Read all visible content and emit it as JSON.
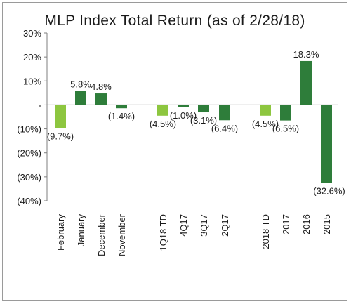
{
  "chart_data": {
    "type": "bar",
    "title": "MLP Index Total Return (as of 2/28/18)",
    "ylim": [
      -40,
      30
    ],
    "yticks": [
      {
        "value": 30,
        "label": "30%"
      },
      {
        "value": 20,
        "label": "20%"
      },
      {
        "value": 10,
        "label": "10%"
      },
      {
        "value": 0,
        "label": "-"
      },
      {
        "value": -10,
        "label": "(10%)"
      },
      {
        "value": -20,
        "label": "(20%)"
      },
      {
        "value": -30,
        "label": "(30%)"
      },
      {
        "value": -40,
        "label": "(40%)"
      }
    ],
    "categories": [
      "February",
      "January",
      "December",
      "November",
      "1Q18 TD",
      "4Q17",
      "3Q17",
      "2Q17",
      "2018 TD",
      "2017",
      "2016",
      "2015"
    ],
    "values": [
      -9.7,
      5.8,
      4.8,
      -1.4,
      -4.5,
      -1.0,
      -3.1,
      -6.4,
      -4.5,
      -6.5,
      18.3,
      -32.6
    ],
    "data_labels": [
      "(9.7%)",
      "5.8%",
      "4.8%",
      "(1.4%)",
      "(4.5%)",
      "(1.0%)",
      "(3.1%)",
      "(6.4%)",
      "(4.5%)",
      "(6.5%)",
      "18.3%",
      "(32.6%)"
    ],
    "bar_colors": [
      "#8dc63f",
      "#2e7d3a",
      "#2e7d3a",
      "#2e7d3a",
      "#8dc63f",
      "#2e7d3a",
      "#2e7d3a",
      "#2e7d3a",
      "#8dc63f",
      "#2e7d3a",
      "#2e7d3a",
      "#2e7d3a"
    ],
    "grid": false,
    "legend": "none"
  }
}
